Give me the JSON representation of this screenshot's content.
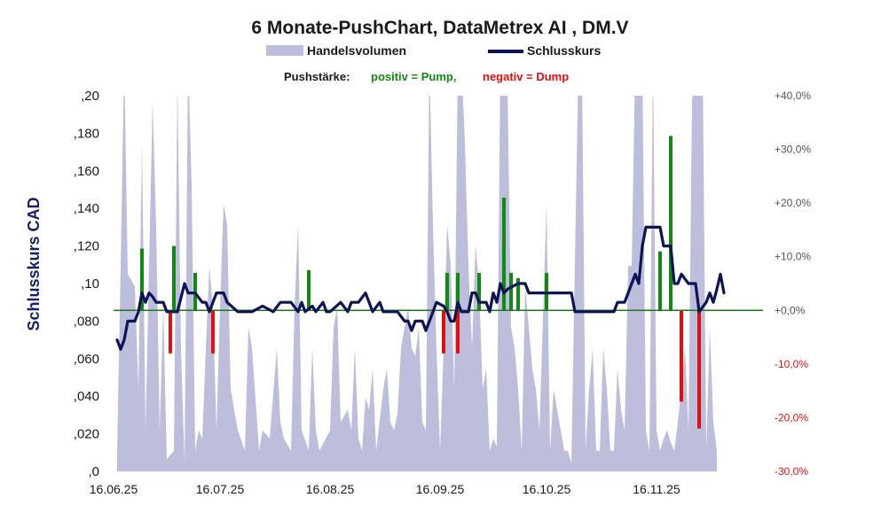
{
  "chart_data": {
    "type": "bar+line+area",
    "title": "6 Monate-PushChart, DataMetrex AI , DM.V",
    "legend": {
      "volume_label": "Handelsvolumen",
      "close_label": "Schlusskurs",
      "push_prefix": "Pushstärke:",
      "push_positive": "positiv = Pump,",
      "push_negative": "negativ = Dump"
    },
    "ylabel": "Schlusskurs CAD",
    "y_left": {
      "min": 0,
      "max": 0.2,
      "tick_labels": [
        ",0",
        ",020",
        ",040",
        ",060",
        ",080",
        ",10",
        ",120",
        ",140",
        ",160",
        ",180",
        ",20"
      ]
    },
    "y_right": {
      "min": -30,
      "max": 40,
      "tick_labels": [
        "-30,0%",
        "-20,0%",
        "-10,0%",
        "+0,0%",
        "+10,0%",
        "+20,0%",
        "+30,0%",
        "+40,0%"
      ]
    },
    "x_tick_labels": [
      "16.06.25",
      "16.07.25",
      "16.08.25",
      "16.09.25",
      "16.10.25",
      "16.11.25"
    ],
    "x_range_days": [
      0,
      183
    ],
    "close": [
      [
        1,
        0.07
      ],
      [
        2,
        0.065
      ],
      [
        3,
        0.07
      ],
      [
        4,
        0.08
      ],
      [
        5,
        0.08
      ],
      [
        6,
        0.08
      ],
      [
        7,
        0.085
      ],
      [
        8,
        0.095
      ],
      [
        9,
        0.09
      ],
      [
        10,
        0.095
      ],
      [
        11,
        0.093
      ],
      [
        12,
        0.09
      ],
      [
        13,
        0.09
      ],
      [
        14,
        0.09
      ],
      [
        15,
        0.085
      ],
      [
        16,
        0.085
      ],
      [
        17,
        0.085
      ],
      [
        18,
        0.085
      ],
      [
        20,
        0.1
      ],
      [
        21,
        0.095
      ],
      [
        23,
        0.095
      ],
      [
        25,
        0.09
      ],
      [
        26,
        0.09
      ],
      [
        27,
        0.085
      ],
      [
        29,
        0.095
      ],
      [
        31,
        0.095
      ],
      [
        32,
        0.09
      ],
      [
        35,
        0.085
      ],
      [
        39,
        0.085
      ],
      [
        42,
        0.088
      ],
      [
        45,
        0.085
      ],
      [
        47,
        0.09
      ],
      [
        48,
        0.09
      ],
      [
        50,
        0.09
      ],
      [
        52,
        0.085
      ],
      [
        53,
        0.09
      ],
      [
        54,
        0.085
      ],
      [
        56,
        0.088
      ],
      [
        57,
        0.085
      ],
      [
        59,
        0.09
      ],
      [
        60,
        0.085
      ],
      [
        61,
        0.085
      ],
      [
        64,
        0.09
      ],
      [
        66,
        0.085
      ],
      [
        67,
        0.09
      ],
      [
        69,
        0.09
      ],
      [
        71,
        0.095
      ],
      [
        72,
        0.09
      ],
      [
        73,
        0.085
      ],
      [
        75,
        0.09
      ],
      [
        76,
        0.085
      ],
      [
        80,
        0.085
      ],
      [
        82,
        0.08
      ],
      [
        83,
        0.08
      ],
      [
        84,
        0.075
      ],
      [
        85,
        0.08
      ],
      [
        87,
        0.08
      ],
      [
        88,
        0.075
      ],
      [
        89,
        0.08
      ],
      [
        91,
        0.09
      ],
      [
        93,
        0.088
      ],
      [
        94,
        0.085
      ],
      [
        95,
        0.08
      ],
      [
        96,
        0.08
      ],
      [
        97,
        0.09
      ],
      [
        98,
        0.085
      ],
      [
        99,
        0.085
      ],
      [
        100,
        0.085
      ],
      [
        101,
        0.095
      ],
      [
        102,
        0.095
      ],
      [
        103,
        0.09
      ],
      [
        105,
        0.09
      ],
      [
        106,
        0.085
      ],
      [
        107,
        0.095
      ],
      [
        108,
        0.09
      ],
      [
        109,
        0.1
      ],
      [
        110,
        0.095
      ],
      [
        111,
        0.097
      ],
      [
        112,
        0.098
      ],
      [
        114,
        0.1
      ],
      [
        116,
        0.1
      ],
      [
        117,
        0.095
      ],
      [
        120,
        0.095
      ],
      [
        128,
        0.095
      ],
      [
        129,
        0.095
      ],
      [
        130,
        0.085
      ],
      [
        133,
        0.085
      ],
      [
        137,
        0.085
      ],
      [
        140,
        0.085
      ],
      [
        141,
        0.085
      ],
      [
        142,
        0.09
      ],
      [
        144,
        0.09
      ],
      [
        146,
        0.1
      ],
      [
        147,
        0.105
      ],
      [
        148,
        0.1
      ],
      [
        149,
        0.12
      ],
      [
        150,
        0.13
      ],
      [
        154,
        0.13
      ],
      [
        155,
        0.12
      ],
      [
        156,
        0.12
      ],
      [
        157,
        0.12
      ],
      [
        158,
        0.1
      ],
      [
        159,
        0.1
      ],
      [
        160,
        0.105
      ],
      [
        162,
        0.1
      ],
      [
        163,
        0.1
      ],
      [
        164,
        0.1
      ],
      [
        165,
        0.085
      ],
      [
        167,
        0.09
      ],
      [
        168,
        0.095
      ],
      [
        169,
        0.09
      ],
      [
        170,
        0.097
      ],
      [
        171,
        0.105
      ],
      [
        172,
        0.095
      ]
    ],
    "volume_rel": [
      [
        1,
        0.05
      ],
      [
        2,
        0.5
      ],
      [
        3,
        1.0
      ],
      [
        4,
        0.48
      ],
      [
        6,
        0.45
      ],
      [
        7,
        0.2
      ],
      [
        8,
        0.8
      ],
      [
        9,
        0.1
      ],
      [
        11,
        0.9
      ],
      [
        12,
        0.6
      ],
      [
        13,
        0.1
      ],
      [
        14,
        0.4
      ],
      [
        15,
        0.03
      ],
      [
        17,
        0.05
      ],
      [
        18,
        0.95
      ],
      [
        19,
        0.3
      ],
      [
        20,
        0.02
      ],
      [
        21,
        1.0
      ],
      [
        22,
        0.7
      ],
      [
        23,
        0.05
      ],
      [
        24,
        0.1
      ],
      [
        25,
        0.08
      ],
      [
        26,
        0.3
      ],
      [
        27,
        0.5
      ],
      [
        28,
        0.4
      ],
      [
        29,
        0.1
      ],
      [
        30,
        0.4
      ],
      [
        31,
        0.65
      ],
      [
        32,
        0.6
      ],
      [
        33,
        0.2
      ],
      [
        35,
        0.1
      ],
      [
        37,
        0.05
      ],
      [
        38,
        0.35
      ],
      [
        39,
        0.3
      ],
      [
        41,
        0.05
      ],
      [
        42,
        0.1
      ],
      [
        44,
        0.08
      ],
      [
        46,
        0.3
      ],
      [
        47,
        0.12
      ],
      [
        48,
        0.08
      ],
      [
        50,
        0.05
      ],
      [
        51,
        0.4
      ],
      [
        52,
        0.6
      ],
      [
        53,
        0.1
      ],
      [
        55,
        0.05
      ],
      [
        56,
        0.3
      ],
      [
        57,
        0.1
      ],
      [
        58,
        0.05
      ],
      [
        61,
        0.1
      ],
      [
        62,
        0.35
      ],
      [
        63,
        0.4
      ],
      [
        64,
        0.12
      ],
      [
        66,
        0.15
      ],
      [
        67,
        0.1
      ],
      [
        68,
        0.3
      ],
      [
        69,
        0.08
      ],
      [
        70,
        0.05
      ],
      [
        71,
        0.18
      ],
      [
        72,
        0.15
      ],
      [
        73,
        0.25
      ],
      [
        74,
        0.05
      ],
      [
        76,
        0.2
      ],
      [
        77,
        0.25
      ],
      [
        78,
        0.12
      ],
      [
        79,
        0.1
      ],
      [
        80,
        0.14
      ],
      [
        81,
        0.3
      ],
      [
        82,
        0.35
      ],
      [
        83,
        0.4
      ],
      [
        84,
        0.3
      ],
      [
        85,
        0.28
      ],
      [
        86,
        0.35
      ],
      [
        87,
        0.12
      ],
      [
        88,
        0.1
      ],
      [
        89,
        1.0
      ],
      [
        90,
        0.6
      ],
      [
        91,
        0.3
      ],
      [
        92,
        0.05
      ],
      [
        93,
        0.3
      ],
      [
        94,
        0.6
      ],
      [
        95,
        0.5
      ],
      [
        96,
        0.2
      ],
      [
        97,
        1.0
      ],
      [
        98,
        1.0
      ],
      [
        99,
        0.8
      ],
      [
        100,
        0.5
      ],
      [
        101,
        0.3
      ],
      [
        102,
        0.55
      ],
      [
        103,
        0.45
      ],
      [
        104,
        0.2
      ],
      [
        105,
        0.25
      ],
      [
        106,
        0.05
      ],
      [
        107,
        0.08
      ],
      [
        108,
        0.06
      ],
      [
        109,
        1.0
      ],
      [
        110,
        1.0
      ],
      [
        111,
        0.95
      ],
      [
        112,
        0.35
      ],
      [
        113,
        0.3
      ],
      [
        114,
        0.2
      ],
      [
        115,
        0.05
      ],
      [
        116,
        0.45
      ],
      [
        118,
        0.25
      ],
      [
        119,
        0.2
      ],
      [
        120,
        0.1
      ],
      [
        122,
        0.65
      ],
      [
        123,
        0.05
      ],
      [
        124,
        0.2
      ],
      [
        125,
        0.15
      ],
      [
        126,
        0.1
      ],
      [
        127,
        0.05
      ],
      [
        128,
        0.05
      ],
      [
        129,
        0.02
      ],
      [
        131,
        1.0
      ],
      [
        132,
        1.0
      ],
      [
        133,
        0.05
      ],
      [
        134,
        0.2
      ],
      [
        135,
        0.3
      ],
      [
        136,
        0.05
      ],
      [
        137,
        0.05
      ],
      [
        138,
        0.3
      ],
      [
        139,
        0.2
      ],
      [
        140,
        0.05
      ],
      [
        141,
        0.05
      ],
      [
        142,
        0.25
      ],
      [
        143,
        0.15
      ],
      [
        144,
        0.1
      ],
      [
        145,
        0.5
      ],
      [
        146,
        0.5
      ],
      [
        147,
        1.0
      ],
      [
        148,
        1.0
      ],
      [
        149,
        1.0
      ],
      [
        150,
        0.1
      ],
      [
        151,
        0.05
      ],
      [
        152,
        1.0
      ],
      [
        153,
        0.1
      ],
      [
        154,
        0.05
      ],
      [
        155,
        0.08
      ],
      [
        156,
        0.1
      ],
      [
        157,
        0.07
      ],
      [
        158,
        0.05
      ],
      [
        159,
        0.12
      ],
      [
        160,
        0.2
      ],
      [
        161,
        0.3
      ],
      [
        162,
        0.1
      ],
      [
        163,
        0.9
      ],
      [
        164,
        1.0
      ],
      [
        165,
        1.0
      ],
      [
        166,
        1.0
      ],
      [
        167,
        0.05
      ],
      [
        168,
        0.35
      ],
      [
        169,
        0.12
      ],
      [
        170,
        0.05
      ]
    ],
    "push": [
      [
        8,
        11.5
      ],
      [
        17,
        12
      ],
      [
        23,
        7
      ],
      [
        16,
        -8
      ],
      [
        28,
        -8
      ],
      [
        55,
        7.5
      ],
      [
        94,
        7
      ],
      [
        97,
        7
      ],
      [
        93,
        -8
      ],
      [
        97,
        -8
      ],
      [
        103,
        7
      ],
      [
        110,
        21
      ],
      [
        112,
        7
      ],
      [
        114,
        6
      ],
      [
        122,
        7
      ],
      [
        154,
        11
      ],
      [
        157,
        32.5
      ],
      [
        160,
        -17
      ],
      [
        165,
        -22
      ]
    ]
  }
}
